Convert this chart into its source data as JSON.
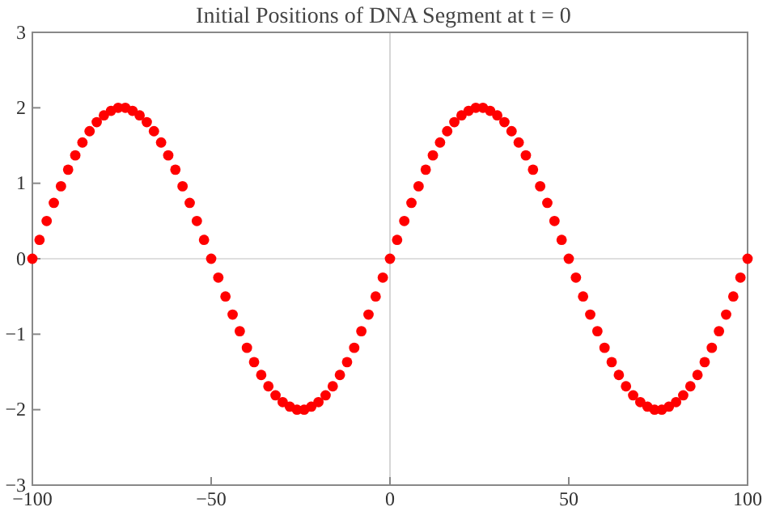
{
  "chart_data": {
    "type": "scatter",
    "title": "Initial Positions of DNA Segment at t = 0",
    "x": [
      -100,
      -98,
      -96,
      -94,
      -92,
      -90,
      -88,
      -86,
      -84,
      -82,
      -80,
      -78,
      -76,
      -74,
      -72,
      -70,
      -68,
      -66,
      -64,
      -62,
      -60,
      -58,
      -56,
      -54,
      -52,
      -50,
      -48,
      -46,
      -44,
      -42,
      -40,
      -38,
      -36,
      -34,
      -32,
      -30,
      -28,
      -26,
      -24,
      -22,
      -20,
      -18,
      -16,
      -14,
      -12,
      -10,
      -8,
      -6,
      -4,
      -2,
      0,
      2,
      4,
      6,
      8,
      10,
      12,
      14,
      16,
      18,
      20,
      22,
      24,
      26,
      28,
      30,
      32,
      34,
      36,
      38,
      40,
      42,
      44,
      46,
      48,
      50,
      52,
      54,
      56,
      58,
      60,
      62,
      64,
      66,
      68,
      70,
      72,
      74,
      76,
      78,
      80,
      82,
      84,
      86,
      88,
      90,
      92,
      94,
      96,
      98,
      100
    ],
    "series": [
      {
        "color": "#ff0000",
        "values": [
          0,
          0.25,
          0.5,
          0.74,
          0.96,
          1.18,
          1.37,
          1.54,
          1.69,
          1.81,
          1.9,
          1.96,
          2,
          2,
          1.96,
          1.9,
          1.81,
          1.69,
          1.54,
          1.37,
          1.18,
          0.96,
          0.74,
          0.5,
          0.25,
          0,
          -0.25,
          -0.5,
          -0.74,
          -0.96,
          -1.18,
          -1.37,
          -1.54,
          -1.69,
          -1.81,
          -1.9,
          -1.96,
          -2,
          -2,
          -1.96,
          -1.9,
          -1.81,
          -1.69,
          -1.54,
          -1.37,
          -1.18,
          -0.96,
          -0.74,
          -0.5,
          -0.25,
          0,
          0.25,
          0.5,
          0.74,
          0.96,
          1.18,
          1.37,
          1.54,
          1.69,
          1.81,
          1.9,
          1.96,
          2,
          2,
          1.96,
          1.9,
          1.81,
          1.69,
          1.54,
          1.37,
          1.18,
          0.96,
          0.74,
          0.5,
          0.25,
          0,
          -0.25,
          -0.5,
          -0.74,
          -0.96,
          -1.18,
          -1.37,
          -1.54,
          -1.69,
          -1.81,
          -1.9,
          -1.96,
          -2,
          -2,
          -1.96,
          -1.9,
          -1.81,
          -1.69,
          -1.54,
          -1.37,
          -1.18,
          -0.96,
          -0.74,
          -0.5,
          -0.25,
          0
        ]
      }
    ],
    "xlim": [
      -100,
      100
    ],
    "ylim": [
      -3,
      3
    ],
    "xticks": [
      {
        "value": -100,
        "label": "−100"
      },
      {
        "value": -50,
        "label": "−50"
      },
      0,
      50,
      100
    ],
    "yticks": [
      {
        "value": -3,
        "label": "−3"
      },
      {
        "value": -2,
        "label": "−2"
      },
      {
        "value": -1,
        "label": "−1"
      },
      0,
      1,
      2,
      3
    ],
    "marker": "circle",
    "ref_lines": [
      {
        "axis": "x",
        "value": 0,
        "color": "#cccccc"
      },
      {
        "axis": "y",
        "value": 0,
        "color": "#d4d4d4"
      }
    ]
  }
}
